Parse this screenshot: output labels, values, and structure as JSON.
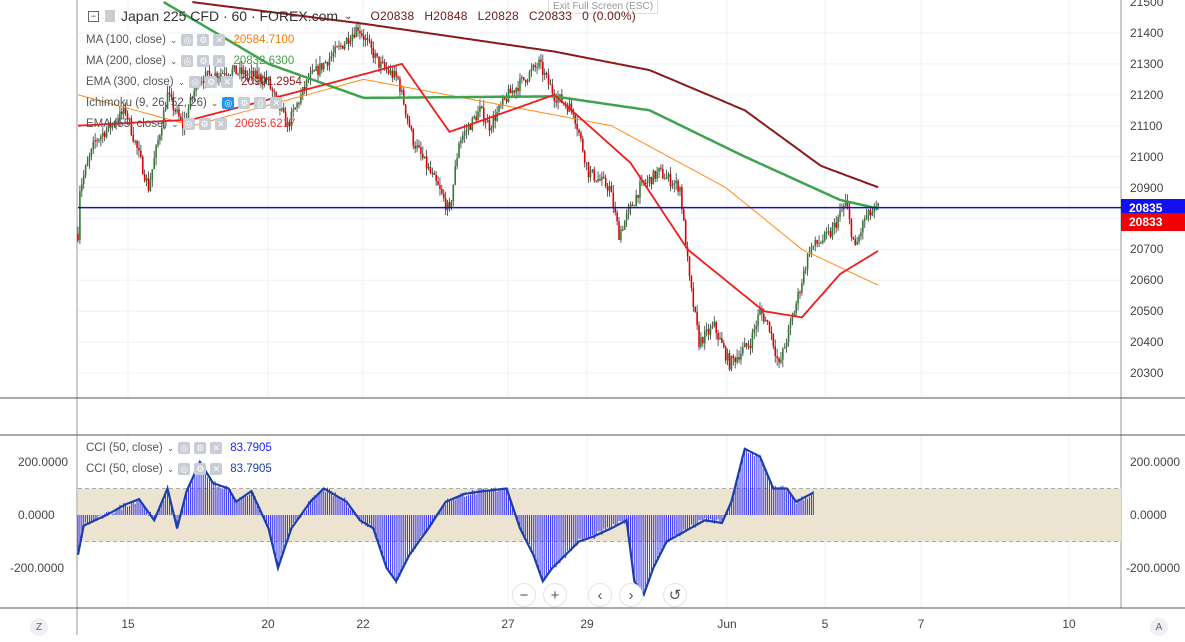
{
  "header": {
    "symbol": "Japan 225 CFD · 60 · FOREX.com",
    "open": "O20838",
    "high": "H20848",
    "low": "L20828",
    "close": "C20833",
    "change": "0 (0.00%)",
    "exit_fullscreen": "Exit Full Screen (ESC)"
  },
  "indicators": [
    {
      "label": "MA (100, close)",
      "value": "20584.7100",
      "color": "#f57c00"
    },
    {
      "label": "MA (200, close)",
      "value": "20832.6300",
      "color": "#43a047"
    },
    {
      "label": "EMA (300, close)",
      "value": "20901.2954",
      "color": "#8b1a1a"
    },
    {
      "label": "Ichimoku (9, 26, 52, 26)",
      "value": "",
      "color": "#888888"
    },
    {
      "label": "EMA (55, close)",
      "value": "20695.6217",
      "color": "#e53935"
    }
  ],
  "cci_legend": [
    {
      "label": "CCI (50, close)",
      "value": "83.7905",
      "color": "#1e22ff"
    },
    {
      "label": "CCI (50, close)",
      "value": "83.7905",
      "color": "#1a3fa8"
    }
  ],
  "price_axis": [
    "21500",
    "21400",
    "21300",
    "21200",
    "21100",
    "21000",
    "20900",
    "20700",
    "20600",
    "20500",
    "20400",
    "20300"
  ],
  "price_labels": {
    "line": "20835",
    "last": "20833"
  },
  "cci_axis": [
    "200.0000",
    "0.0000",
    "-200.0000"
  ],
  "time_axis": [
    "15",
    "20",
    "22",
    "27",
    "29",
    "Jun",
    "5",
    "7",
    "10"
  ],
  "toolbar": {
    "zoom_out": "−",
    "zoom_in": "+",
    "back": "‹",
    "forward": "›",
    "reset": "↺",
    "left_corner": "Z",
    "right_corner": "A"
  },
  "chart_data": {
    "type": "candlestick",
    "ylim": [
      20250,
      21500
    ],
    "horizontal_line": 20835,
    "price_path": [
      [
        0,
        20750
      ],
      [
        1,
        20900
      ],
      [
        9,
        21050
      ],
      [
        25,
        21150
      ],
      [
        37,
        20900
      ],
      [
        47,
        21200
      ],
      [
        55,
        21100
      ],
      [
        63,
        21250
      ],
      [
        79,
        21280
      ],
      [
        99,
        21250
      ],
      [
        110,
        21100
      ],
      [
        121,
        21250
      ],
      [
        137,
        21350
      ],
      [
        147,
        21420
      ],
      [
        158,
        21300
      ],
      [
        168,
        21250
      ],
      [
        176,
        21050
      ],
      [
        189,
        20900
      ],
      [
        195,
        20820
      ],
      [
        200,
        21050
      ],
      [
        211,
        21150
      ],
      [
        216,
        21100
      ],
      [
        226,
        21200
      ],
      [
        242,
        21300
      ],
      [
        250,
        21200
      ],
      [
        260,
        21150
      ],
      [
        268,
        20950
      ],
      [
        279,
        20900
      ],
      [
        284,
        20750
      ],
      [
        295,
        20900
      ],
      [
        305,
        20950
      ],
      [
        316,
        20900
      ],
      [
        321,
        20600
      ],
      [
        326,
        20400
      ],
      [
        334,
        20450
      ],
      [
        342,
        20330
      ],
      [
        353,
        20400
      ],
      [
        358,
        20500
      ],
      [
        363,
        20450
      ],
      [
        368,
        20320
      ],
      [
        376,
        20500
      ],
      [
        384,
        20700
      ],
      [
        395,
        20750
      ],
      [
        403,
        20850
      ],
      [
        408,
        20700
      ],
      [
        413,
        20800
      ],
      [
        420,
        20833
      ]
    ],
    "ma100": [
      [
        0,
        21200
      ],
      [
        60,
        21100
      ],
      [
        150,
        21250
      ],
      [
        220,
        21170
      ],
      [
        280,
        21100
      ],
      [
        340,
        20900
      ],
      [
        380,
        20700
      ],
      [
        420,
        20584
      ]
    ],
    "ma200": [
      [
        45,
        21500
      ],
      [
        100,
        21300
      ],
      [
        150,
        21190
      ],
      [
        250,
        21195
      ],
      [
        300,
        21150
      ],
      [
        350,
        21000
      ],
      [
        400,
        20860
      ],
      [
        420,
        20832
      ]
    ],
    "ema300": [
      [
        60,
        21500
      ],
      [
        150,
        21430
      ],
      [
        250,
        21340
      ],
      [
        300,
        21280
      ],
      [
        350,
        21150
      ],
      [
        390,
        20970
      ],
      [
        420,
        20901
      ]
    ],
    "ema55": [
      [
        0,
        21100
      ],
      [
        60,
        21120
      ],
      [
        140,
        21250
      ],
      [
        170,
        21300
      ],
      [
        195,
        21080
      ],
      [
        250,
        21200
      ],
      [
        290,
        20980
      ],
      [
        320,
        20700
      ],
      [
        360,
        20500
      ],
      [
        380,
        20480
      ],
      [
        400,
        20620
      ],
      [
        420,
        20695
      ]
    ],
    "cci": [
      [
        0,
        -150
      ],
      [
        3,
        -40
      ],
      [
        15,
        0
      ],
      [
        25,
        40
      ],
      [
        32,
        60
      ],
      [
        40,
        -20
      ],
      [
        47,
        100
      ],
      [
        52,
        -50
      ],
      [
        57,
        90
      ],
      [
        64,
        200
      ],
      [
        71,
        120
      ],
      [
        79,
        100
      ],
      [
        83,
        50
      ],
      [
        91,
        90
      ],
      [
        100,
        -50
      ],
      [
        105,
        -200
      ],
      [
        112,
        -50
      ],
      [
        122,
        50
      ],
      [
        129,
        100
      ],
      [
        141,
        50
      ],
      [
        148,
        -20
      ],
      [
        155,
        -50
      ],
      [
        162,
        -200
      ],
      [
        167,
        -250
      ],
      [
        174,
        -150
      ],
      [
        184,
        -50
      ],
      [
        193,
        50
      ],
      [
        203,
        80
      ],
      [
        213,
        90
      ],
      [
        225,
        100
      ],
      [
        232,
        -50
      ],
      [
        239,
        -150
      ],
      [
        244,
        -250
      ],
      [
        249,
        -200
      ],
      [
        256,
        -150
      ],
      [
        263,
        -100
      ],
      [
        271,
        -80
      ],
      [
        280,
        -50
      ],
      [
        288,
        -20
      ],
      [
        292,
        -250
      ],
      [
        297,
        -300
      ],
      [
        302,
        -200
      ],
      [
        309,
        -100
      ],
      [
        319,
        -60
      ],
      [
        329,
        -20
      ],
      [
        338,
        -30
      ],
      [
        343,
        50
      ],
      [
        350,
        250
      ],
      [
        358,
        220
      ],
      [
        365,
        100
      ],
      [
        372,
        100
      ],
      [
        377,
        50
      ],
      [
        386,
        84
      ]
    ],
    "cci_band": [
      -100,
      100
    ]
  }
}
